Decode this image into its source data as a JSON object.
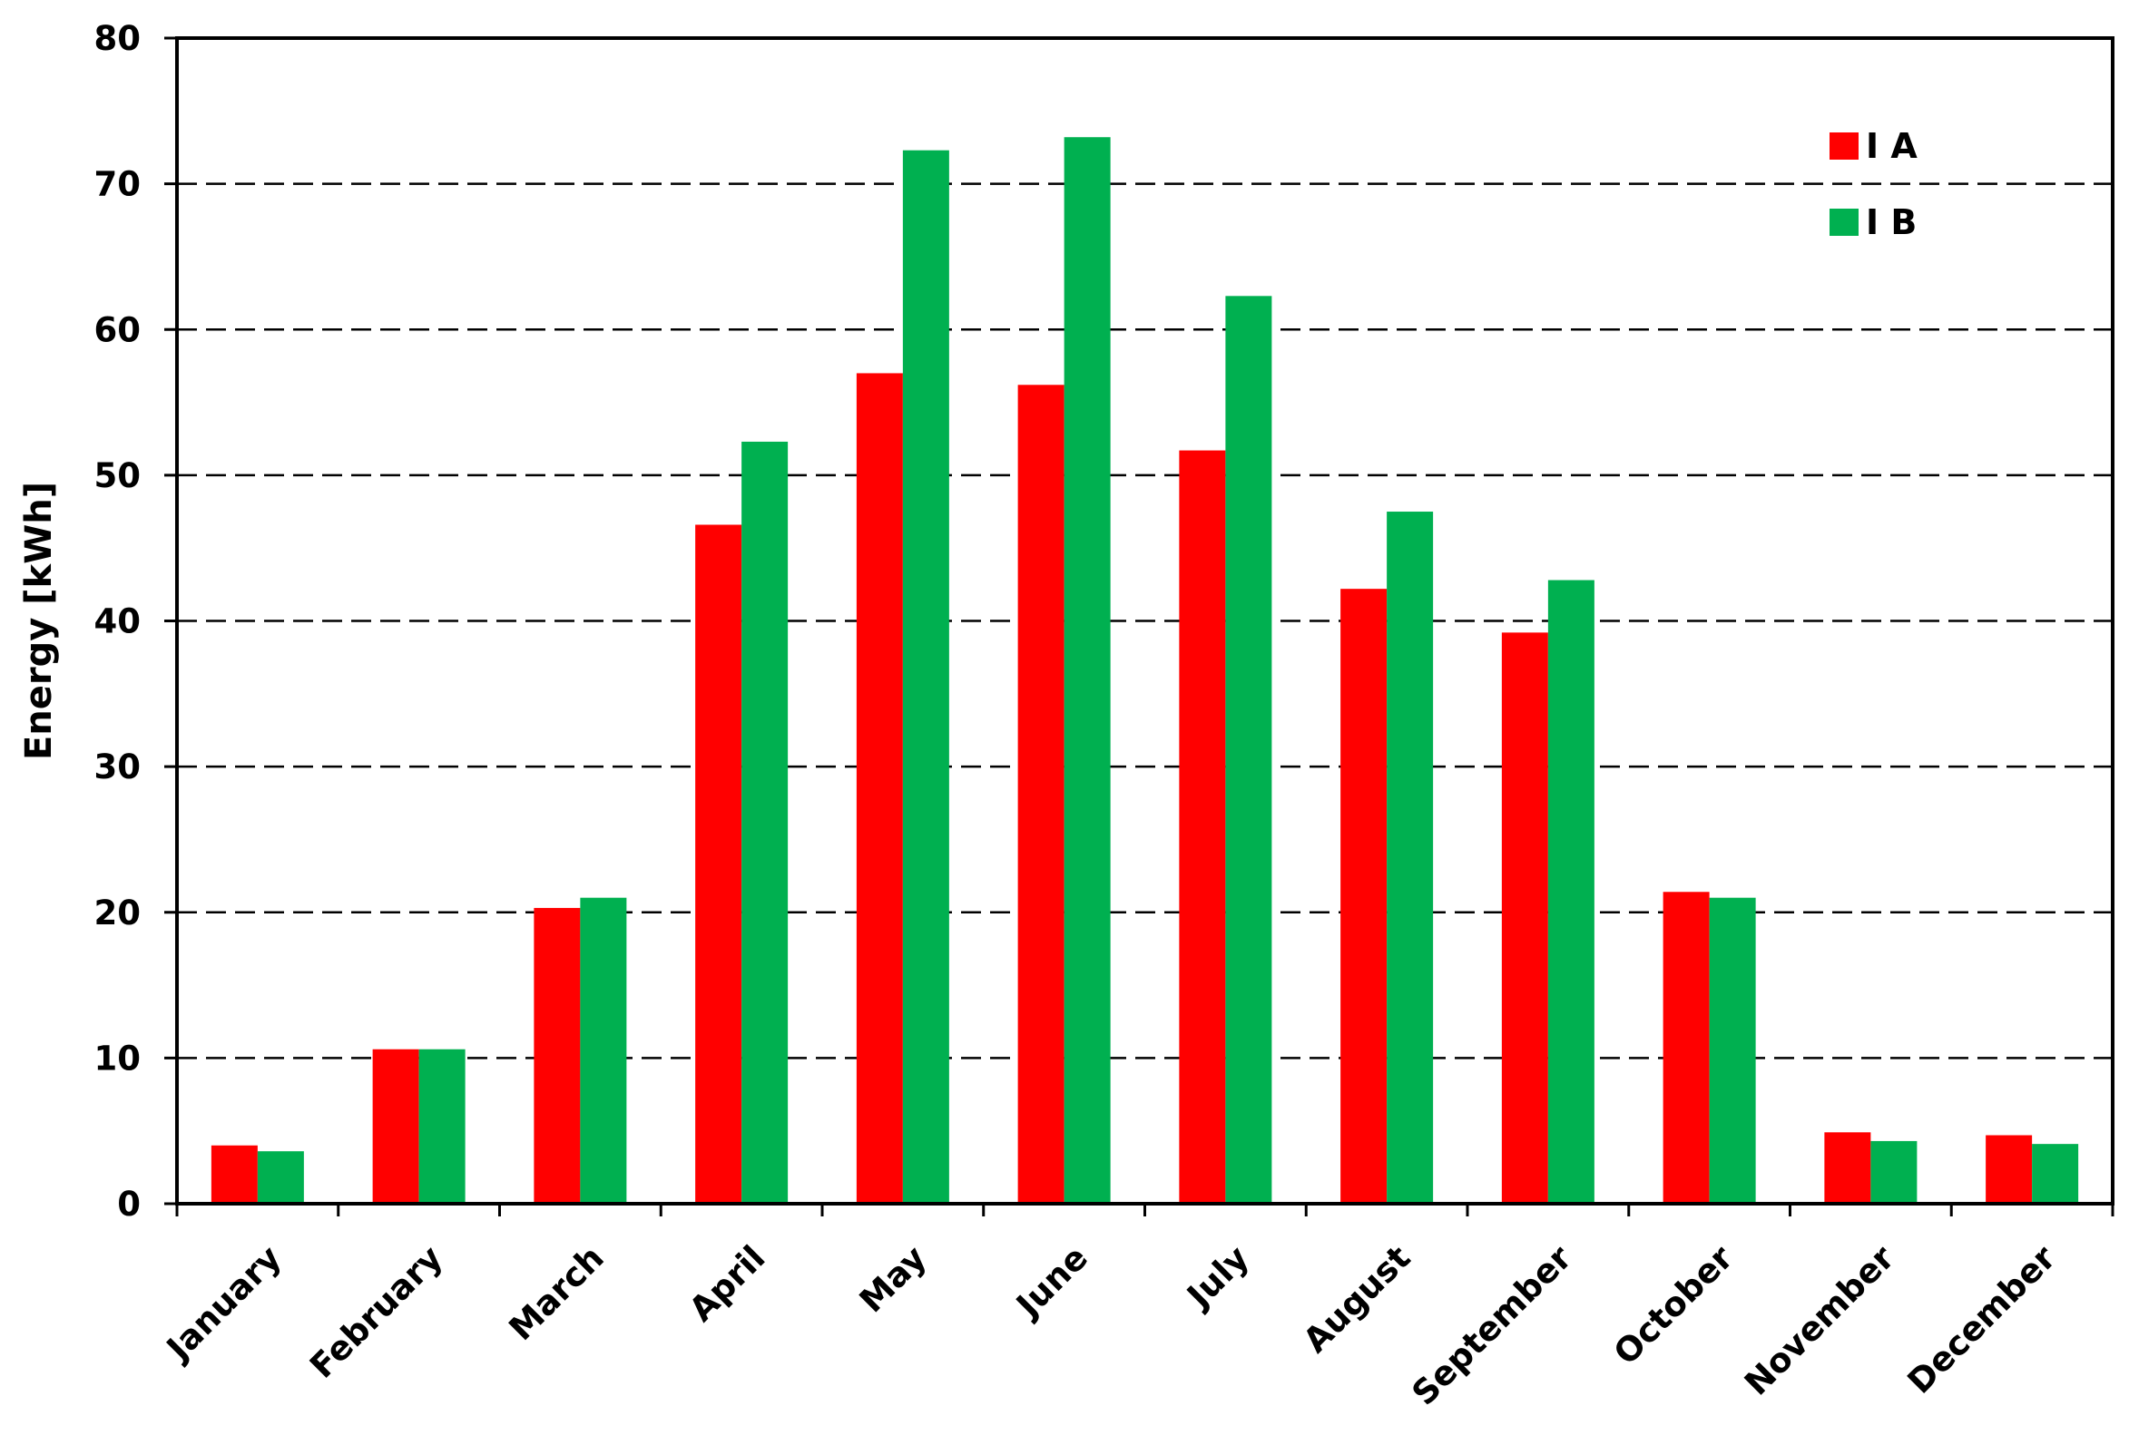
{
  "chart_data": {
    "type": "bar",
    "ylabel": "Energy [kWh]",
    "xlabel": "",
    "ylim": [
      0,
      80
    ],
    "yticks": [
      0,
      10,
      20,
      30,
      40,
      50,
      60,
      70,
      80
    ],
    "grid": "horizontal dashed",
    "legend_position": "top-right",
    "categories": [
      "January",
      "February",
      "March",
      "April",
      "May",
      "June",
      "July",
      "August",
      "September",
      "October",
      "November",
      "December"
    ],
    "series": [
      {
        "name": "I A",
        "color": "#ff0000",
        "values": [
          4.0,
          10.6,
          20.3,
          46.6,
          57.0,
          56.2,
          51.7,
          42.2,
          39.2,
          21.4,
          4.9,
          4.7
        ]
      },
      {
        "name": "I B",
        "color": "#00b050",
        "values": [
          3.6,
          10.6,
          21.0,
          52.3,
          72.3,
          73.2,
          62.3,
          47.5,
          42.8,
          21.0,
          4.3,
          4.1
        ]
      }
    ]
  }
}
